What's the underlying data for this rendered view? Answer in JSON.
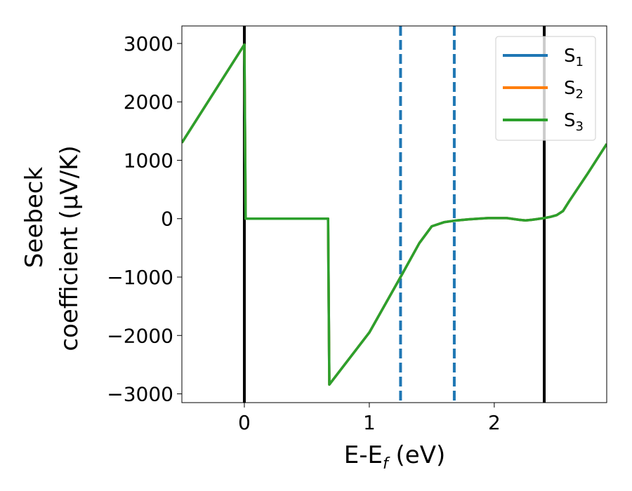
{
  "chart_data": {
    "type": "line",
    "xlabel": "E-E",
    "xlabel_sub": "f",
    "xlabel_unit": " (eV)",
    "ylabel_line1": "Seebeck",
    "ylabel_line2": "coefficient  (μV/K)",
    "xlim": [
      -0.5,
      2.9
    ],
    "ylim": [
      -3150,
      3300
    ],
    "xticks": [
      0,
      1,
      2
    ],
    "xtick_labels": [
      "0",
      "1",
      "2"
    ],
    "yticks": [
      3000,
      2000,
      1000,
      0,
      -1000,
      -2000,
      -3000
    ],
    "ytick_labels": [
      "3000",
      "2000",
      "1000",
      "0",
      "−1000",
      "−2000",
      "−3000"
    ],
    "grid": false,
    "legend_position": "top-right",
    "series": [
      {
        "name": "S",
        "sub": "1",
        "color": "#1f77b4",
        "x": [
          -0.5,
          0.0,
          0.01,
          0.67,
          0.68,
          1.0,
          1.25,
          1.4,
          1.5,
          1.6,
          1.7,
          1.8,
          1.95,
          2.1,
          2.2,
          2.25,
          2.3,
          2.4,
          2.45,
          2.5,
          2.55,
          2.6,
          2.75,
          2.9
        ],
        "y": [
          1300,
          2980,
          0,
          0,
          -2840,
          -1950,
          -1000,
          -420,
          -130,
          -60,
          -30,
          -10,
          10,
          10,
          -20,
          -30,
          -20,
          10,
          30,
          60,
          130,
          300,
          780,
          1280
        ]
      },
      {
        "name": "S",
        "sub": "2",
        "color": "#ff7f0e",
        "x": [
          -0.5,
          0.0,
          0.01,
          0.67,
          0.68,
          1.0,
          1.25,
          1.4,
          1.5,
          1.6,
          1.7,
          1.8,
          1.95,
          2.1,
          2.2,
          2.25,
          2.3,
          2.4,
          2.45,
          2.5,
          2.55,
          2.6,
          2.75,
          2.9
        ],
        "y": [
          1300,
          2980,
          0,
          0,
          -2840,
          -1950,
          -1000,
          -420,
          -130,
          -60,
          -30,
          -10,
          10,
          10,
          -20,
          -30,
          -20,
          10,
          30,
          60,
          130,
          300,
          780,
          1280
        ]
      },
      {
        "name": "S",
        "sub": "3",
        "color": "#2ca02c",
        "x": [
          -0.5,
          0.0,
          0.01,
          0.67,
          0.68,
          1.0,
          1.25,
          1.4,
          1.5,
          1.6,
          1.7,
          1.8,
          1.95,
          2.1,
          2.2,
          2.25,
          2.3,
          2.4,
          2.45,
          2.5,
          2.55,
          2.6,
          2.75,
          2.9
        ],
        "y": [
          1300,
          2980,
          0,
          0,
          -2840,
          -1950,
          -1000,
          -420,
          -130,
          -60,
          -30,
          -10,
          10,
          10,
          -20,
          -30,
          -20,
          10,
          30,
          60,
          130,
          300,
          780,
          1280
        ]
      }
    ],
    "vlines_solid": [
      0.0,
      2.4
    ],
    "vlines_dashed": [
      1.25,
      1.68
    ],
    "vline_solid_color": "#000000",
    "vline_dashed_color": "#1f77b4"
  }
}
